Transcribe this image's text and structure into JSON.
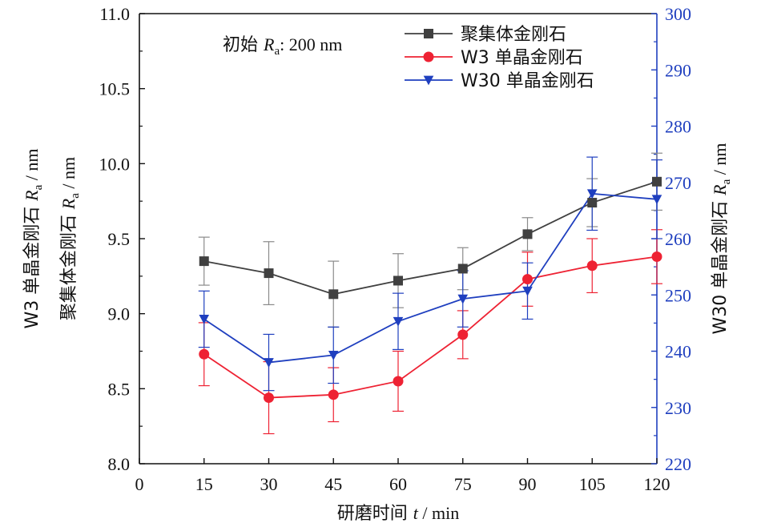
{
  "chart_data": {
    "type": "line",
    "annotation": {
      "prefix": "初始 ",
      "symbol": "R",
      "subscript": "a",
      "suffix": ": 200 nm"
    },
    "xlabel": {
      "text": "研磨时间 ",
      "var": "t",
      "unit": " / min"
    },
    "ylabel_left": [
      {
        "text": "W3 单晶金刚石 ",
        "var": "R",
        "sub": "a",
        "unit": " / nm"
      },
      {
        "text": "聚集体金刚石 ",
        "var": "R",
        "sub": "a",
        "unit": " / nm"
      }
    ],
    "ylabel_right": {
      "text": "W30 单晶金刚石 ",
      "var": "R",
      "sub": "a",
      "unit": " / nm"
    },
    "x": [
      15,
      30,
      45,
      60,
      75,
      90,
      105,
      120
    ],
    "xlim": [
      0,
      120
    ],
    "xticks": [
      "0",
      "15",
      "30",
      "45",
      "60",
      "75",
      "90",
      "105",
      "120"
    ],
    "ylim_left": [
      8.0,
      11.0
    ],
    "yticks_left": [
      "8.0",
      "8.5",
      "9.0",
      "9.5",
      "10.0",
      "10.5",
      "11.0"
    ],
    "ylim_right": [
      220,
      300
    ],
    "yticks_right": [
      "220",
      "230",
      "240",
      "250",
      "260",
      "270",
      "280",
      "290",
      "300"
    ],
    "series": [
      {
        "name": "聚集体金刚石",
        "axis": "left",
        "marker": "square",
        "color": "#404040",
        "err_color": "#8a8a8a",
        "values": [
          9.35,
          9.27,
          9.13,
          9.22,
          9.3,
          9.53,
          9.74,
          9.88
        ],
        "err": [
          0.16,
          0.21,
          0.22,
          0.18,
          0.14,
          0.11,
          0.16,
          0.19
        ]
      },
      {
        "name": "W3 单晶金刚石",
        "axis": "left",
        "marker": "circle",
        "color": "#ee2233",
        "err_color": "#ee2233",
        "values": [
          8.73,
          8.44,
          8.46,
          8.55,
          8.86,
          9.23,
          9.32,
          9.38
        ],
        "err": [
          0.21,
          0.24,
          0.18,
          0.2,
          0.16,
          0.18,
          0.18,
          0.18
        ]
      },
      {
        "name": "W30 单晶金刚石",
        "axis": "right",
        "marker": "triangle-down",
        "color": "#1f3fbf",
        "err_color": "#1f3fbf",
        "values": [
          245.7,
          238.0,
          239.3,
          245.3,
          249.3,
          250.7,
          268.0,
          267.0
        ],
        "err": [
          5.0,
          5.0,
          5.0,
          5.0,
          5.0,
          5.0,
          6.5,
          7.0
        ]
      }
    ],
    "legend_position": "top-right",
    "grid": false
  }
}
